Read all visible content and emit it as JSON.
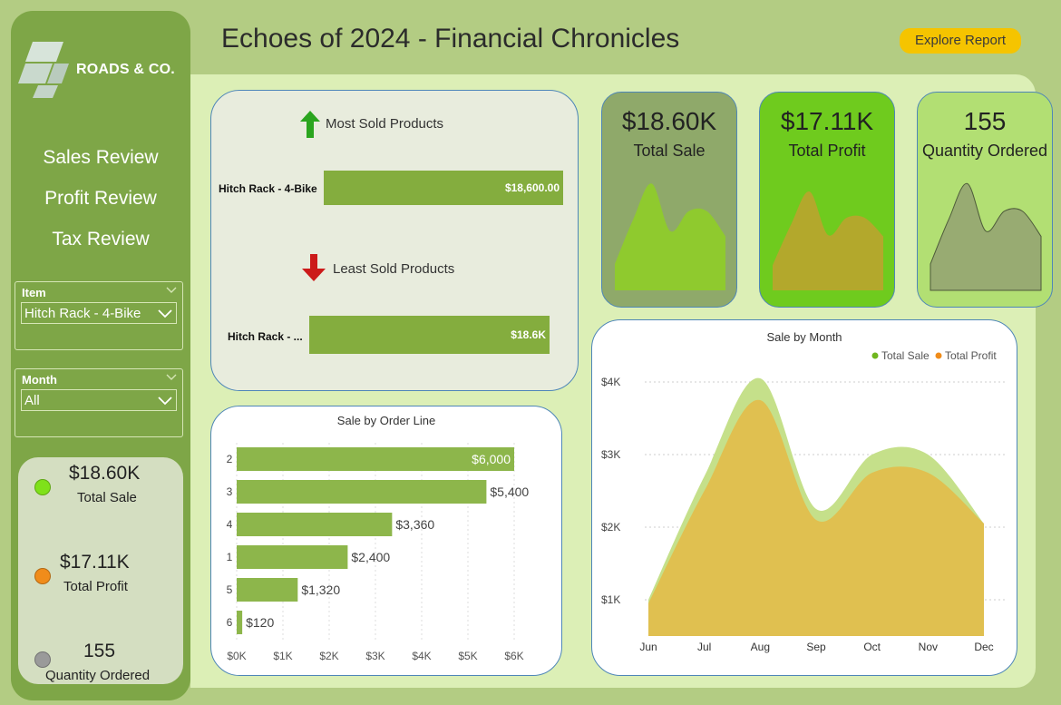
{
  "logo": {
    "text": "ROADS & CO."
  },
  "header": {
    "title": "Echoes of 2024 - Financial Chronicles",
    "explore_label": "Explore Report"
  },
  "nav": {
    "items": [
      "Sales Review",
      "Profit Review",
      "Tax Review"
    ]
  },
  "filters": {
    "item": {
      "label": "Item",
      "value": "Hitch Rack - 4-Bike"
    },
    "month": {
      "label": "Month",
      "value": "All"
    }
  },
  "legend_card": {
    "entries": [
      {
        "value": "$18.60K",
        "label": "Total Sale",
        "color": "#7fe11a"
      },
      {
        "value": "$17.11K",
        "label": "Total Profit",
        "color": "#f08c1a"
      },
      {
        "value": "155",
        "label": "Quantity Ordered",
        "color": "#9a9a9a"
      }
    ]
  },
  "products": {
    "most_title": "Most Sold Products",
    "most_category": "Hitch Rack - 4-Bike",
    "most_value": "$18,600.00",
    "least_title": "Least Sold Products",
    "least_category": "Hitch Rack - ...",
    "least_value": "$18.6K"
  },
  "kpis": [
    {
      "value": "$18.60K",
      "label": "Total Sale",
      "bg": "#8fa96a",
      "fill": "#8fca2e"
    },
    {
      "value": "$17.11K",
      "label": "Total Profit",
      "bg": "#6fcb1e",
      "fill": "#b3a82c"
    },
    {
      "value": "155",
      "label": "Quantity Ordered",
      "bg": "#b2df73",
      "fill": "#98ab72"
    }
  ],
  "chart_data": [
    {
      "type": "bar",
      "title": "Sale by Order Line",
      "categories": [
        "2",
        "3",
        "4",
        "1",
        "5",
        "6"
      ],
      "values": [
        6000,
        5400,
        3360,
        2400,
        1320,
        120
      ],
      "value_labels": [
        "$6,000",
        "$5,400",
        "$3,360",
        "$2,400",
        "$1,320",
        "$120"
      ],
      "xlim": [
        0,
        6000
      ],
      "x_ticks": [
        "$0K",
        "$1K",
        "$2K",
        "$3K",
        "$4K",
        "$5K",
        "$6K"
      ],
      "color": "#8db64b"
    },
    {
      "type": "area",
      "title": "Sale by Month",
      "categories": [
        "Jun",
        "Jul",
        "Aug",
        "Sep",
        "Oct",
        "Nov",
        "Dec"
      ],
      "series": [
        {
          "name": "Total Sale",
          "values": [
            1000,
            2700,
            4050,
            2250,
            3000,
            3000,
            2050
          ],
          "color": "#c5e08a"
        },
        {
          "name": "Total Profit",
          "values": [
            950,
            2500,
            3750,
            2100,
            2750,
            2750,
            2050
          ],
          "color": "#e0c050"
        }
      ],
      "y_ticks": [
        "$1K",
        "$2K",
        "$3K",
        "$4K"
      ],
      "ylim": [
        500,
        4200
      ],
      "legend_position": "top-right"
    }
  ]
}
